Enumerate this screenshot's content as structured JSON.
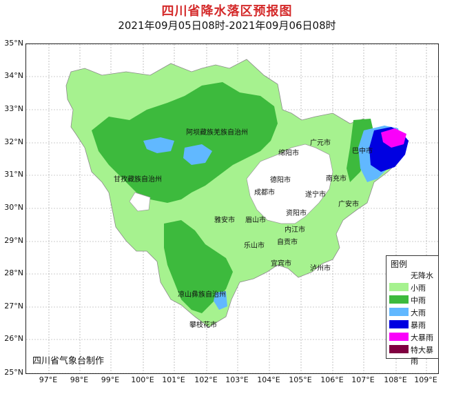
{
  "header": {
    "title": "四川省降水落区预报图",
    "subtitle": "2021年09月05日08时-2021年09月06日08时"
  },
  "axes": {
    "lat_labels": [
      "35°N",
      "34°N",
      "33°N",
      "32°N",
      "31°N",
      "30°N",
      "29°N",
      "28°N",
      "27°N",
      "26°N",
      "25°N"
    ],
    "lon_labels": [
      "97°E",
      "98°E",
      "99°E",
      "100°E",
      "101°E",
      "102°E",
      "103°E",
      "104°E",
      "105°E",
      "106°E",
      "107°E",
      "108°E",
      "109°E"
    ]
  },
  "cities": [
    {
      "name": "阿坝藏族羌族自治州"
    },
    {
      "name": "甘孜藏族自治州"
    },
    {
      "name": "绵阳市"
    },
    {
      "name": "广元市"
    },
    {
      "name": "巴中市"
    },
    {
      "name": "德阳市"
    },
    {
      "name": "南充市"
    },
    {
      "name": "成都市"
    },
    {
      "name": "遂宁市"
    },
    {
      "name": "广安市"
    },
    {
      "name": "雅安市"
    },
    {
      "name": "眉山市"
    },
    {
      "name": "资阳市"
    },
    {
      "name": "内江市"
    },
    {
      "name": "乐山市"
    },
    {
      "name": "自贡市"
    },
    {
      "name": "宜宾市"
    },
    {
      "name": "泸州市"
    },
    {
      "name": "凉山彝族自治州"
    },
    {
      "name": "攀枝花市"
    }
  ],
  "legend": {
    "title": "图例",
    "items": [
      {
        "label": "无降水",
        "color": "#ffffff"
      },
      {
        "label": "小雨",
        "color": "#a6f28f"
      },
      {
        "label": "中雨",
        "color": "#3dba3d"
      },
      {
        "label": "大雨",
        "color": "#61b8ff"
      },
      {
        "label": "暴雨",
        "color": "#0000e1"
      },
      {
        "label": "大暴雨",
        "color": "#fa00fa"
      },
      {
        "label": "特大暴雨",
        "color": "#800040"
      }
    ]
  },
  "credit": "四川省气象台制作"
}
